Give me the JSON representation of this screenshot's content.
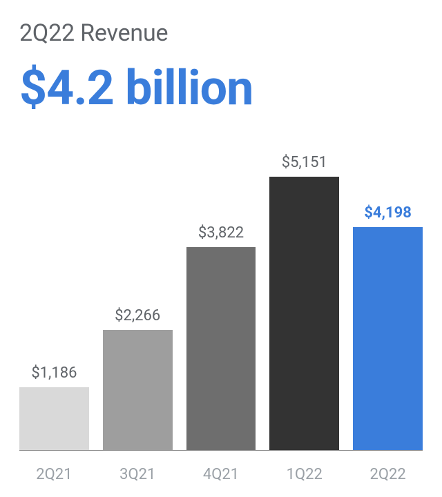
{
  "title": "2Q22 Revenue",
  "headline": "$4.2 billion",
  "chart": {
    "type": "bar",
    "background_color": "#ffffff",
    "axis_color": "#8e8e8e",
    "title_color": "#5f6368",
    "title_fontsize": 34,
    "headline_color": "#3a7ddb",
    "headline_fontsize": 70,
    "ylim_max": 5600,
    "label_fontsize": 22,
    "tick_fontsize": 22,
    "tick_color": "#9aa0a6",
    "bars": [
      {
        "category": "2Q21",
        "value": 1186,
        "label": "$1,186",
        "color": "#d9d9d9",
        "label_color": "#5f6368"
      },
      {
        "category": "3Q21",
        "value": 2266,
        "label": "$2,266",
        "color": "#9e9e9e",
        "label_color": "#5f6368"
      },
      {
        "category": "4Q21",
        "value": 3822,
        "label": "$3,822",
        "color": "#6e6e6e",
        "label_color": "#5f6368"
      },
      {
        "category": "1Q22",
        "value": 5151,
        "label": "$5,151",
        "color": "#333333",
        "label_color": "#5f6368"
      },
      {
        "category": "2Q22",
        "value": 4198,
        "label": "$4,198",
        "color": "#3a7ddb",
        "label_color": "#3a7ddb",
        "label_bold": true
      }
    ]
  }
}
